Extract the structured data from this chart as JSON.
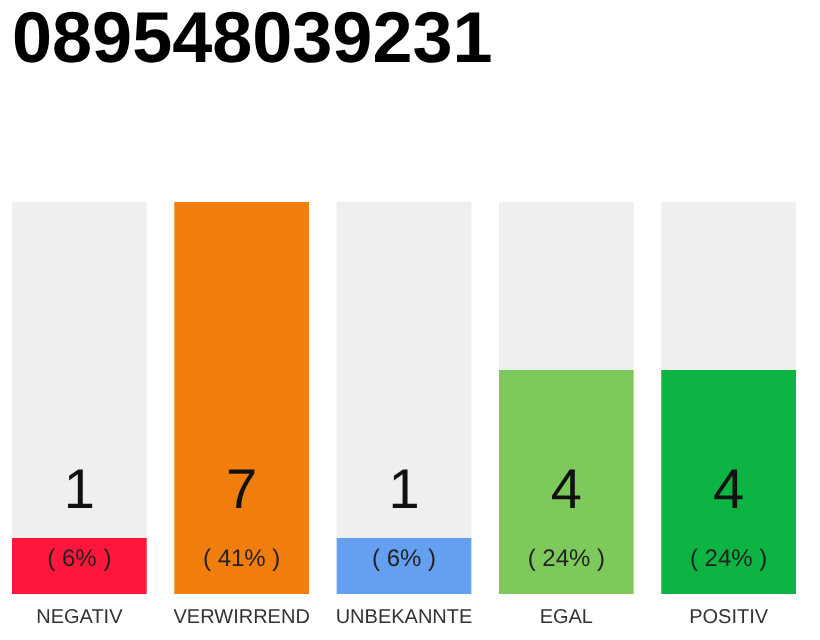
{
  "chart_data": {
    "type": "bar",
    "title": "089548039231",
    "categories": [
      "NEGATIV",
      "VERWIRREND",
      "UNBEKANNTE",
      "EGAL",
      "POSITIV"
    ],
    "stacked": true,
    "ylim": [
      0,
      7
    ],
    "tick_labels": "x",
    "grid": false,
    "series": [
      {
        "values": [
          1,
          7,
          1,
          4,
          4
        ],
        "colors": [
          "#ff163c",
          "#f07d0c",
          "#659ff0",
          "#7ec95c",
          "#0db443"
        ],
        "data_labels": true
      },
      {
        "values": [
          6,
          0,
          6,
          3,
          3
        ],
        "color": "#efefef"
      }
    ],
    "annotations": [
      {
        "text": "( 6% )",
        "x": "NEGATIV",
        "y": 0
      },
      {
        "text": "( 41% )",
        "x": "VERWIRREND",
        "y": 0
      },
      {
        "text": "( 6% )",
        "x": "UNBEKANNTE",
        "y": 0
      },
      {
        "text": "( 24% )",
        "x": "EGAL",
        "y": 0
      },
      {
        "text": "( 24% )",
        "x": "POSITIV",
        "y": 0
      }
    ]
  }
}
